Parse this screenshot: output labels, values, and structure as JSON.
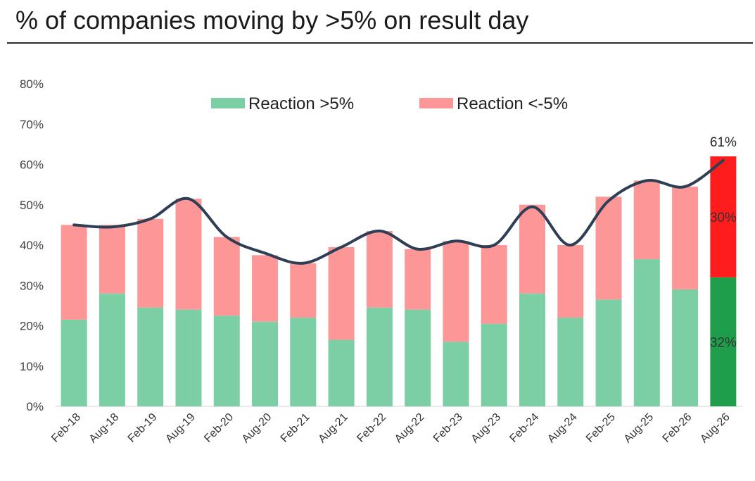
{
  "chart_data": {
    "type": "bar",
    "title": "% of companies moving by >5% on result day",
    "categories": [
      "Feb-18",
      "Aug-18",
      "Feb-19",
      "Aug-19",
      "Feb-20",
      "Aug-20",
      "Feb-21",
      "Aug-21",
      "Feb-22",
      "Aug-22",
      "Feb-23",
      "Aug-23",
      "Feb-24",
      "Aug-24",
      "Feb-25",
      "Aug-25",
      "Feb-26",
      "Aug-26"
    ],
    "series": [
      {
        "name": "Reaction >5%",
        "values": [
          21.5,
          28,
          24.5,
          24,
          22.5,
          21,
          22,
          16.5,
          24.5,
          24,
          16,
          20.5,
          28,
          22,
          26.5,
          36.5,
          29,
          32
        ],
        "color": "#7ccfa4"
      },
      {
        "name": "Reaction <-5%",
        "values": [
          23.5,
          17,
          22,
          27.5,
          19.5,
          16.5,
          13.5,
          23,
          19,
          15,
          25,
          19.5,
          22,
          18,
          25.5,
          19.5,
          25.5,
          30
        ],
        "color": "#fd9797"
      }
    ],
    "line": {
      "values": [
        45,
        44.5,
        46.5,
        51.5,
        42,
        38,
        35.5,
        39.5,
        43.5,
        39,
        41,
        40,
        49.5,
        40,
        51,
        56,
        54.5,
        61
      ],
      "color": "#2d3e55"
    },
    "highlight": {
      "index": 17,
      "lower_color": "#1e9d4b",
      "upper_color": "#ff1c1c"
    },
    "data_labels": {
      "total": "61%",
      "upper": "30%",
      "lower": "32%"
    },
    "ylim": [
      0,
      80
    ],
    "yticks": [
      "0%",
      "10%",
      "20%",
      "30%",
      "40%",
      "50%",
      "60%",
      "70%",
      "80%"
    ],
    "xlabel": "",
    "ylabel": "",
    "grid": false,
    "legend_position": "top"
  }
}
